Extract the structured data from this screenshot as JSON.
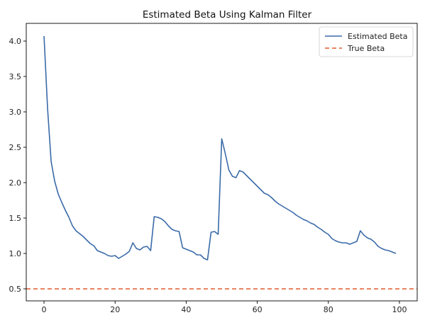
{
  "chart_data": {
    "type": "line",
    "title": "Estimated Beta Using Kalman Filter",
    "xlabel": "",
    "ylabel": "",
    "xlim": [
      -5,
      105
    ],
    "ylim": [
      0.33,
      4.25
    ],
    "xticks": [
      0,
      20,
      40,
      60,
      80,
      100
    ],
    "yticks": [
      0.5,
      1.0,
      1.5,
      2.0,
      2.5,
      3.0,
      3.5,
      4.0
    ],
    "xtick_labels": [
      "0",
      "20",
      "40",
      "60",
      "80",
      "100"
    ],
    "ytick_labels": [
      "0.5",
      "1.0",
      "1.5",
      "2.0",
      "2.5",
      "3.0",
      "3.5",
      "4.0"
    ],
    "grid": false,
    "legend_position": "top-right",
    "series": [
      {
        "name": "Estimated Beta",
        "color": "#3a6aa8",
        "style": "solid",
        "x": [
          0,
          1,
          2,
          3,
          4,
          5,
          6,
          7,
          8,
          9,
          10,
          11,
          12,
          13,
          14,
          15,
          16,
          17,
          18,
          19,
          20,
          21,
          22,
          23,
          24,
          25,
          26,
          27,
          28,
          29,
          30,
          31,
          32,
          33,
          34,
          35,
          36,
          37,
          38,
          39,
          40,
          41,
          42,
          43,
          44,
          45,
          46,
          47,
          48,
          49,
          50,
          51,
          52,
          53,
          54,
          55,
          56,
          57,
          58,
          59,
          60,
          61,
          62,
          63,
          64,
          65,
          66,
          67,
          68,
          69,
          70,
          71,
          72,
          73,
          74,
          75,
          76,
          77,
          78,
          79,
          80,
          81,
          82,
          83,
          84,
          85,
          86,
          87,
          88,
          89,
          90,
          91,
          92,
          93,
          94,
          95,
          96,
          97,
          98,
          99
        ],
        "values": [
          4.07,
          3.05,
          2.3,
          2.02,
          1.84,
          1.72,
          1.61,
          1.51,
          1.39,
          1.32,
          1.28,
          1.24,
          1.19,
          1.14,
          1.11,
          1.04,
          1.02,
          1.0,
          0.97,
          0.96,
          0.97,
          0.93,
          0.96,
          0.99,
          1.03,
          1.15,
          1.07,
          1.05,
          1.09,
          1.1,
          1.04,
          1.52,
          1.51,
          1.49,
          1.45,
          1.39,
          1.34,
          1.32,
          1.31,
          1.08,
          1.06,
          1.04,
          1.02,
          0.98,
          0.98,
          0.93,
          0.91,
          1.3,
          1.31,
          1.27,
          2.62,
          2.41,
          2.18,
          2.09,
          2.07,
          2.17,
          2.15,
          2.1,
          2.05,
          2.0,
          1.95,
          1.9,
          1.85,
          1.83,
          1.79,
          1.74,
          1.7,
          1.67,
          1.64,
          1.61,
          1.58,
          1.54,
          1.51,
          1.48,
          1.46,
          1.43,
          1.41,
          1.37,
          1.34,
          1.3,
          1.27,
          1.21,
          1.18,
          1.16,
          1.15,
          1.15,
          1.13,
          1.15,
          1.17,
          1.32,
          1.26,
          1.22,
          1.2,
          1.16,
          1.1,
          1.07,
          1.05,
          1.04,
          1.02,
          1.0
        ]
      },
      {
        "name": "True Beta",
        "color": "#e05a2b",
        "style": "dashed",
        "y_constant": 0.5
      }
    ]
  }
}
